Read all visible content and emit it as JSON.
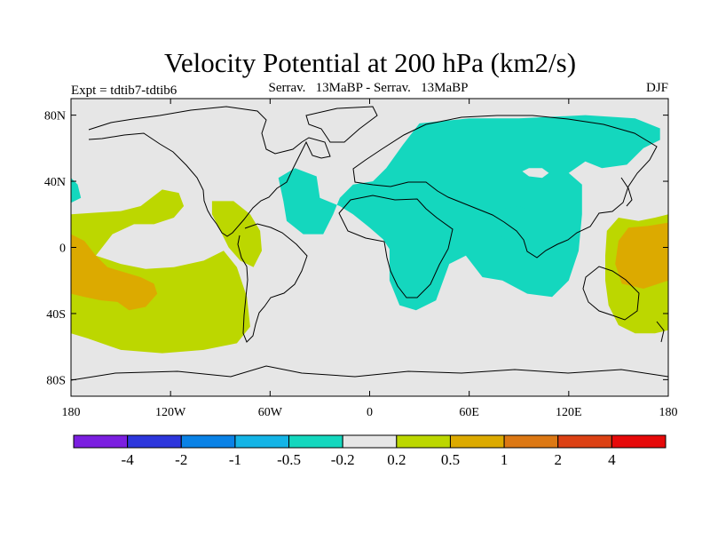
{
  "chart_data": {
    "type": "contour-map",
    "title": "Velocity Potential at 200 hPa (km2/s)",
    "left_subtitle": "Expt = tdtib7-tdtib6",
    "center_subtitle": "Serrav.   13MaBP - Serrav.   13MaBP",
    "right_subtitle": "DJF",
    "x_axis": {
      "range": [
        -180,
        180
      ],
      "ticks": [
        {
          "value": -180,
          "label": "180"
        },
        {
          "value": -120,
          "label": "120W"
        },
        {
          "value": -60,
          "label": "60W"
        },
        {
          "value": 0,
          "label": "0"
        },
        {
          "value": 60,
          "label": "60E"
        },
        {
          "value": 120,
          "label": "120E"
        },
        {
          "value": 180,
          "label": "180"
        }
      ]
    },
    "y_axis": {
      "range": [
        -90,
        90
      ],
      "ticks": [
        {
          "value": 80,
          "label": "80N"
        },
        {
          "value": 40,
          "label": "40N"
        },
        {
          "value": 0,
          "label": "0"
        },
        {
          "value": -40,
          "label": "40S"
        },
        {
          "value": -80,
          "label": "80S"
        }
      ]
    },
    "colorbar": {
      "colors": [
        "#7b1fe0",
        "#2d36dc",
        "#0a82e6",
        "#14b4e6",
        "#14d7be",
        "#e6e6e6",
        "#bcd700",
        "#dcaa00",
        "#dc7814",
        "#dc4114",
        "#e60a0a"
      ],
      "labels": [
        "-4",
        "-2",
        "-1",
        "-0.5",
        "-0.2",
        "0.2",
        "0.5",
        "1",
        "2",
        "4"
      ]
    },
    "regions": [
      {
        "level": -0.5,
        "name": "negative-region-eurasia",
        "points": [
          [
            12,
            -1
          ],
          [
            12,
            -20
          ],
          [
            18,
            -35
          ],
          [
            28,
            -38
          ],
          [
            40,
            -32
          ],
          [
            48,
            -10
          ],
          [
            58,
            -5
          ],
          [
            68,
            -18
          ],
          [
            80,
            -20
          ],
          [
            95,
            -28
          ],
          [
            110,
            -30
          ],
          [
            120,
            -20
          ],
          [
            126,
            -2
          ],
          [
            128,
            20
          ],
          [
            128,
            38
          ],
          [
            120,
            45
          ],
          [
            130,
            52
          ],
          [
            140,
            48
          ],
          [
            155,
            50
          ],
          [
            165,
            60
          ],
          [
            175,
            65
          ],
          [
            175,
            72
          ],
          [
            160,
            78
          ],
          [
            130,
            80
          ],
          [
            90,
            78
          ],
          [
            60,
            78
          ],
          [
            30,
            75
          ],
          [
            20,
            62
          ],
          [
            10,
            48
          ],
          [
            2,
            40
          ],
          [
            -10,
            38
          ],
          [
            -18,
            30
          ],
          [
            -22,
            20
          ],
          [
            -28,
            8
          ],
          [
            -40,
            8
          ],
          [
            -50,
            16
          ],
          [
            -52,
            28
          ],
          [
            -55,
            42
          ],
          [
            -45,
            48
          ],
          [
            -32,
            43
          ],
          [
            -30,
            30
          ],
          [
            -18,
            25
          ],
          [
            -10,
            20
          ],
          [
            0,
            12
          ],
          [
            8,
            5
          ]
        ]
      },
      {
        "level": -0.5,
        "name": "negative-region-atlantic-west",
        "points": [
          [
            -180,
            42
          ],
          [
            -176,
            38
          ],
          [
            -174,
            30
          ],
          [
            -180,
            27
          ]
        ]
      },
      {
        "level": 0.5,
        "name": "positive-region-pacific",
        "points": [
          [
            -180,
            20
          ],
          [
            -165,
            21
          ],
          [
            -150,
            22
          ],
          [
            -138,
            25
          ],
          [
            -125,
            35
          ],
          [
            -115,
            33
          ],
          [
            -112,
            25
          ],
          [
            -118,
            18
          ],
          [
            -130,
            14
          ],
          [
            -142,
            14
          ],
          [
            -155,
            8
          ],
          [
            -165,
            -5
          ],
          [
            -150,
            -10
          ],
          [
            -135,
            -13
          ],
          [
            -118,
            -12
          ],
          [
            -100,
            -8
          ],
          [
            -88,
            -2
          ],
          [
            -80,
            -12
          ],
          [
            -74,
            -30
          ],
          [
            -72,
            -48
          ],
          [
            -80,
            -58
          ],
          [
            -100,
            -62
          ],
          [
            -125,
            -64
          ],
          [
            -150,
            -62
          ],
          [
            -170,
            -55
          ],
          [
            -180,
            -52
          ]
        ]
      },
      {
        "level": 1,
        "name": "positive-region-pacific-core",
        "points": [
          [
            -180,
            8
          ],
          [
            -172,
            4
          ],
          [
            -165,
            -5
          ],
          [
            -158,
            -12
          ],
          [
            -148,
            -15
          ],
          [
            -138,
            -18
          ],
          [
            -130,
            -22
          ],
          [
            -128,
            -28
          ],
          [
            -135,
            -36
          ],
          [
            -145,
            -38
          ],
          [
            -152,
            -33
          ],
          [
            -162,
            -32
          ],
          [
            -172,
            -30
          ],
          [
            -180,
            -28
          ]
        ]
      },
      {
        "level": 0.5,
        "name": "positive-region-central-america",
        "points": [
          [
            -95,
            28
          ],
          [
            -82,
            28
          ],
          [
            -72,
            20
          ],
          [
            -66,
            10
          ],
          [
            -65,
            -2
          ],
          [
            -70,
            -12
          ],
          [
            -78,
            -8
          ],
          [
            -85,
            0
          ],
          [
            -90,
            10
          ],
          [
            -95,
            20
          ]
        ]
      },
      {
        "level": 0.5,
        "name": "positive-region-west-pacific",
        "points": [
          [
            180,
            20
          ],
          [
            172,
            18
          ],
          [
            162,
            16
          ],
          [
            150,
            18
          ],
          [
            143,
            10
          ],
          [
            142,
            -5
          ],
          [
            142,
            -20
          ],
          [
            144,
            -35
          ],
          [
            150,
            -47
          ],
          [
            160,
            -52
          ],
          [
            172,
            -52
          ],
          [
            180,
            -50
          ]
        ]
      },
      {
        "level": 1,
        "name": "positive-region-west-pacific-core",
        "points": [
          [
            180,
            15
          ],
          [
            168,
            13
          ],
          [
            156,
            12
          ],
          [
            150,
            4
          ],
          [
            148,
            -10
          ],
          [
            152,
            -22
          ],
          [
            165,
            -25
          ],
          [
            180,
            -20
          ]
        ]
      },
      {
        "level": -0.5,
        "name": "negative-region-indochina",
        "points": [
          [
            74,
            20
          ],
          [
            78,
            23
          ],
          [
            90,
            25
          ],
          [
            98,
            22
          ],
          [
            102,
            12
          ],
          [
            98,
            6
          ],
          [
            88,
            2
          ],
          [
            80,
            6
          ]
        ]
      },
      {
        "level": 0,
        "name": "neutral-region-siberia",
        "points": [
          [
            92,
            46
          ],
          [
            96,
            43
          ],
          [
            104,
            42
          ],
          [
            108,
            45
          ],
          [
            104,
            48
          ],
          [
            96,
            48
          ]
        ]
      },
      {
        "level": 0,
        "name": "neutral-region-east-pacific",
        "points": [
          [
            -127,
            12
          ],
          [
            -123,
            10
          ],
          [
            -119,
            11
          ],
          [
            -121,
            13
          ]
        ]
      }
    ]
  }
}
